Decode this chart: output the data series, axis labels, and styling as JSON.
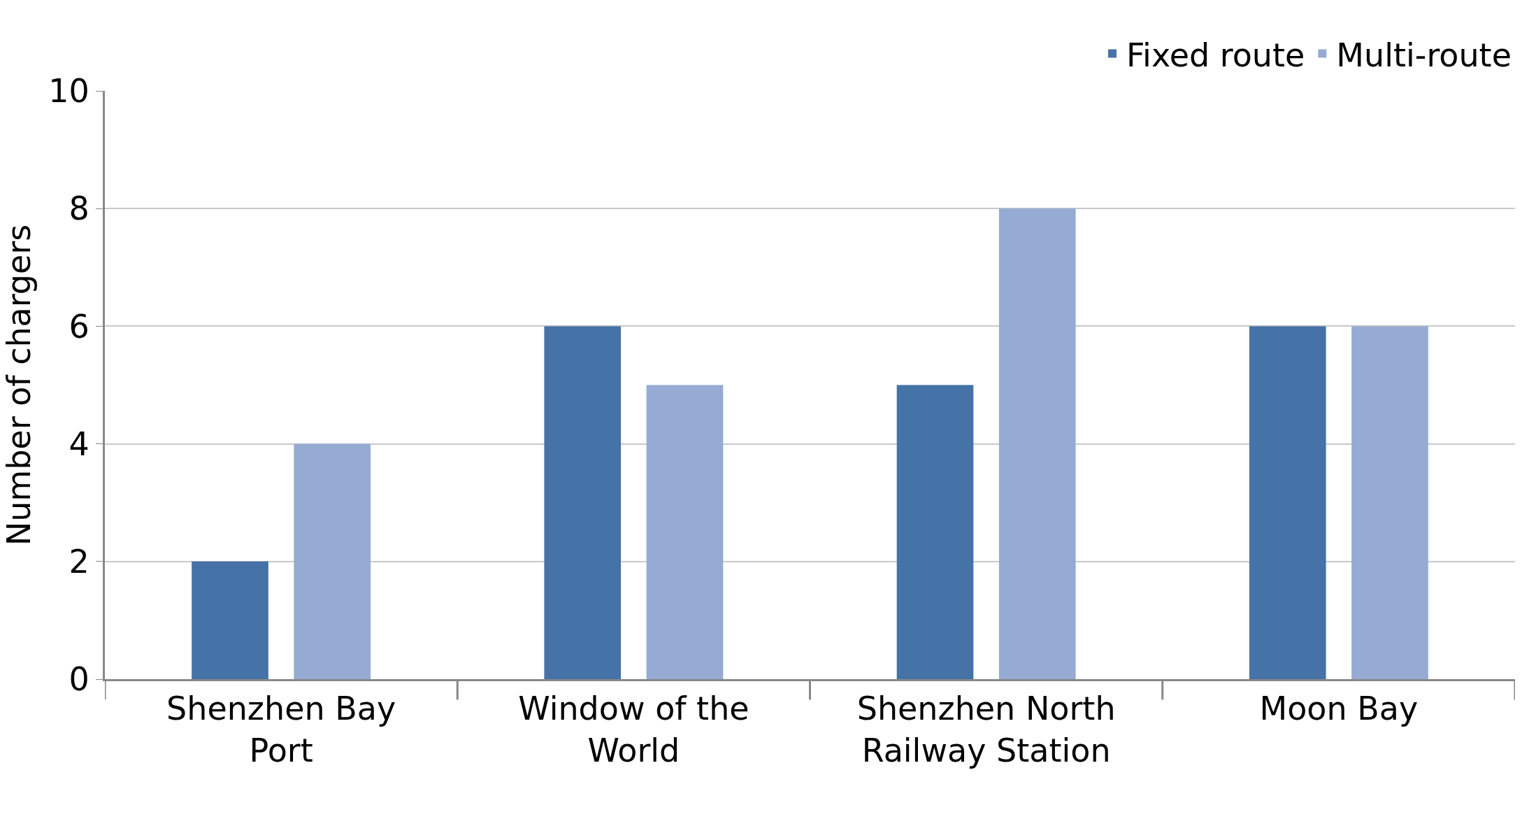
{
  "chart_data": {
    "type": "bar",
    "ylabel": "Number of chargers",
    "categories": [
      "Shenzhen Bay Port",
      "Window of the World",
      "Shenzhen North Railway Station",
      "Moon Bay"
    ],
    "series": [
      {
        "name": "Fixed route",
        "color": "#4572a7",
        "values": [
          2,
          6,
          5,
          6
        ]
      },
      {
        "name": "Multi-route",
        "color": "#95abd3",
        "values": [
          4,
          5,
          8,
          6
        ]
      }
    ],
    "ylim": [
      0,
      10
    ],
    "yticks": [
      0,
      2,
      4,
      6,
      8,
      10
    ],
    "grid": "y",
    "legend": "top right"
  }
}
